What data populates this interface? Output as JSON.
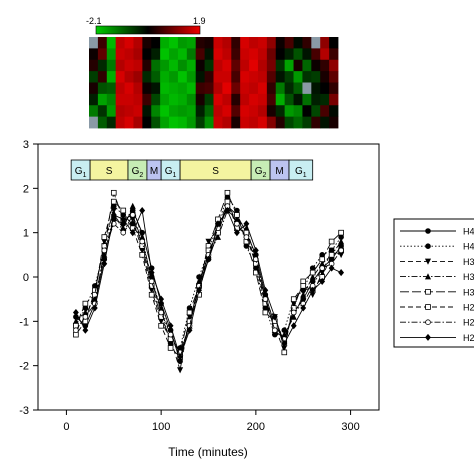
{
  "colorbar": {
    "min_label": "-2.1",
    "max_label": "1.9",
    "colors": [
      "#00cc00",
      "#000000",
      "#ee0000"
    ]
  },
  "heatmap": {
    "rows": 8,
    "cols": 28,
    "values": [
      [
        -0.2,
        0.5,
        -1.8,
        1.6,
        1.8,
        1.5,
        0.2,
        0.0,
        -1.7,
        -1.9,
        -1.5,
        -1.6,
        0.3,
        0.2,
        1.7,
        1.5,
        0.4,
        1.8,
        1.6,
        1.7,
        1.2,
        0.1,
        0.6,
        -0.1,
        0.4,
        0.3,
        1.2,
        0.0
      ],
      [
        0.1,
        0.8,
        -1.5,
        1.7,
        1.6,
        1.4,
        0.0,
        -0.3,
        -1.9,
        -1.6,
        -1.8,
        -1.2,
        0.6,
        -0.2,
        1.8,
        1.6,
        0.5,
        1.7,
        1.8,
        1.6,
        0.9,
        0.0,
        -0.3,
        -0.8,
        -0.2,
        0.6,
        1.5,
        0.5
      ],
      [
        0.3,
        -0.4,
        -1.2,
        1.5,
        1.7,
        1.6,
        0.3,
        -1.1,
        -1.5,
        -1.8,
        -1.4,
        -1.7,
        0.1,
        -0.5,
        1.6,
        1.8,
        0.8,
        1.6,
        1.9,
        1.5,
        1.0,
        -0.5,
        -1.6,
        0.2,
        -1.0,
        0.1,
        0.4,
        1.2
      ],
      [
        -0.6,
        0.4,
        -1.7,
        1.8,
        1.5,
        1.3,
        -0.4,
        -0.9,
        -1.7,
        -1.5,
        -1.9,
        -1.5,
        -0.2,
        0.4,
        1.7,
        1.7,
        0.6,
        1.8,
        1.7,
        1.6,
        0.7,
        -0.2,
        -0.6,
        -1.5,
        -0.5,
        -0.6,
        0.2,
        0.8
      ],
      [
        0.2,
        -0.8,
        -0.9,
        1.6,
        1.8,
        1.5,
        0.1,
        -0.2,
        -1.8,
        -1.7,
        -1.6,
        -1.8,
        0.5,
        0.6,
        1.5,
        1.9,
        0.9,
        1.7,
        1.6,
        1.8,
        0.4,
        -1.2,
        -0.4,
        -0.9,
        0.3,
        -0.2,
        0.0,
        0.4
      ],
      [
        -0.3,
        -1.6,
        -1.3,
        1.7,
        1.7,
        1.6,
        0.5,
        -0.7,
        -1.6,
        -1.8,
        -1.7,
        -1.4,
        0.2,
        -0.6,
        1.8,
        1.6,
        0.3,
        1.6,
        1.8,
        1.7,
        0.6,
        -1.7,
        -0.8,
        -0.2,
        -1.1,
        -0.3,
        -0.4,
        1.0
      ],
      [
        -1.2,
        -0.5,
        -1.5,
        1.5,
        1.6,
        1.7,
        -0.2,
        -1.3,
        -1.9,
        -1.6,
        -1.5,
        -1.6,
        -0.3,
        -1.0,
        1.6,
        1.8,
        0.7,
        1.8,
        1.7,
        1.5,
        0.2,
        -0.4,
        -1.5,
        -1.3,
        0.0,
        -0.7,
        0.6,
        -0.1
      ],
      [
        0.6,
        -0.9,
        -0.4,
        1.6,
        1.8,
        1.4,
        0.0,
        -0.8,
        -1.6,
        -1.9,
        -1.8,
        -1.5,
        -0.6,
        -1.4,
        1.7,
        1.5,
        0.2,
        1.7,
        1.6,
        1.8,
        1.1,
        0.3,
        -0.7,
        -1.0,
        -0.6,
        0.4,
        -0.2,
        0.2
      ]
    ],
    "gray_cells": [
      [
        0,
        0
      ],
      [
        4,
        24
      ],
      [
        7,
        0
      ],
      [
        0,
        25
      ]
    ]
  },
  "phase_bar": [
    {
      "name": "G",
      "sub": "1",
      "t0": 5,
      "t1": 25,
      "color": "#c8eef2"
    },
    {
      "name": "S",
      "sub": "",
      "t0": 25,
      "t1": 65,
      "color": "#f4f4a0"
    },
    {
      "name": "G",
      "sub": "2",
      "t0": 65,
      "t1": 85,
      "color": "#c7edb5"
    },
    {
      "name": "M",
      "sub": "",
      "t0": 85,
      "t1": 100,
      "color": "#bcc4f0"
    },
    {
      "name": "G",
      "sub": "1",
      "t0": 100,
      "t1": 120,
      "color": "#c8eef2"
    },
    {
      "name": "S",
      "sub": "",
      "t0": 120,
      "t1": 195,
      "color": "#f4f4a0"
    },
    {
      "name": "G",
      "sub": "2",
      "t0": 195,
      "t1": 215,
      "color": "#c7edb5"
    },
    {
      "name": "M",
      "sub": "",
      "t0": 215,
      "t1": 235,
      "color": "#bcc4f0"
    },
    {
      "name": "G",
      "sub": "1",
      "t0": 235,
      "t1": 260,
      "color": "#c8eef2"
    }
  ],
  "chart_data": {
    "type": "line",
    "xlabel": "Time (minutes)",
    "ylabel": "",
    "xlim": [
      -30,
      330
    ],
    "ylim": [
      -3,
      3
    ],
    "xticks": [
      0,
      100,
      200,
      300
    ],
    "yticks": [
      -3,
      -2,
      -1,
      0,
      1,
      2,
      3
    ],
    "grid": false,
    "legend_position": "right",
    "x": [
      10,
      20,
      30,
      40,
      50,
      60,
      70,
      80,
      90,
      100,
      110,
      120,
      130,
      140,
      150,
      160,
      170,
      180,
      190,
      200,
      210,
      220,
      230,
      240,
      250,
      260,
      270,
      280,
      290
    ],
    "series": [
      {
        "name": "H4",
        "style": "solid",
        "marker": "circle-filled",
        "values": [
          -0.9,
          -1.1,
          -0.6,
          0.4,
          1.3,
          1.2,
          1.5,
          1.0,
          0.2,
          -0.6,
          -1.2,
          -1.9,
          -1.0,
          -0.2,
          0.4,
          1.0,
          1.6,
          1.4,
          1.0,
          0.5,
          -0.4,
          -1.1,
          -1.4,
          -0.8,
          -0.5,
          -0.1,
          0.2,
          0.4,
          0.7
        ]
      },
      {
        "name": "H4",
        "style": "dotted",
        "marker": "circle-filled",
        "values": [
          -1.1,
          -0.7,
          -0.2,
          0.6,
          1.6,
          1.4,
          1.2,
          0.8,
          0.0,
          -0.8,
          -1.5,
          -1.6,
          -0.7,
          0.0,
          0.6,
          1.2,
          1.8,
          1.5,
          0.7,
          0.2,
          -0.7,
          -1.3,
          -1.2,
          -0.5,
          -0.3,
          0.2,
          0.5,
          0.6,
          0.9
        ]
      },
      {
        "name": "H3",
        "style": "dash",
        "marker": "triangle-down",
        "values": [
          -1.2,
          -0.9,
          -0.4,
          0.8,
          1.5,
          1.0,
          1.3,
          0.6,
          -0.3,
          -1.0,
          -1.4,
          -2.1,
          -0.9,
          -0.3,
          0.8,
          1.1,
          1.7,
          1.2,
          0.9,
          0.3,
          -0.6,
          -0.9,
          -1.6,
          -0.6,
          -0.2,
          -0.4,
          0.1,
          0.6,
          0.5
        ]
      },
      {
        "name": "H3",
        "style": "dashdot",
        "marker": "triangle-up",
        "values": [
          -1.0,
          -0.8,
          -0.5,
          0.5,
          1.4,
          1.1,
          1.6,
          0.9,
          -0.1,
          -0.7,
          -1.3,
          -1.8,
          -1.1,
          -0.1,
          0.5,
          0.9,
          1.5,
          1.3,
          1.1,
          0.4,
          -0.5,
          -1.2,
          -1.3,
          -0.9,
          -0.4,
          0.0,
          0.3,
          0.5,
          0.8
        ]
      },
      {
        "name": "H3",
        "style": "longdash",
        "marker": "square-open",
        "values": [
          -1.3,
          -1.0,
          -0.3,
          0.7,
          1.9,
          1.3,
          1.4,
          0.7,
          -0.2,
          -0.9,
          -1.4,
          -1.7,
          -0.8,
          -0.2,
          0.7,
          1.3,
          1.9,
          1.4,
          0.8,
          0.1,
          -0.8,
          -1.0,
          -1.5,
          -0.7,
          -0.1,
          0.1,
          0.4,
          0.8,
          1.0
        ]
      },
      {
        "name": "H2",
        "style": "dash",
        "marker": "square-open",
        "values": [
          -1.1,
          -0.6,
          -0.4,
          0.9,
          1.7,
          1.5,
          1.1,
          0.5,
          -0.4,
          -1.1,
          -1.6,
          -1.8,
          -1.0,
          -0.4,
          0.6,
          1.0,
          1.7,
          1.1,
          1.0,
          0.3,
          -0.6,
          -1.1,
          -1.7,
          -0.5,
          -0.2,
          -0.3,
          0.0,
          0.5,
          0.6
        ]
      },
      {
        "name": "H2",
        "style": "dashdot",
        "marker": "circle-open",
        "values": [
          -1.2,
          -0.9,
          -0.6,
          0.6,
          1.2,
          1.0,
          1.4,
          0.8,
          -0.1,
          -0.8,
          -1.3,
          -1.7,
          -1.1,
          -0.2,
          0.5,
          1.1,
          1.6,
          1.2,
          0.9,
          0.4,
          -0.5,
          -1.2,
          -1.4,
          -0.8,
          -0.6,
          -0.2,
          0.2,
          0.3,
          0.6
        ]
      },
      {
        "name": "H2",
        "style": "solid",
        "marker": "diamond-filled",
        "values": [
          -0.8,
          -1.2,
          -0.7,
          0.3,
          1.4,
          1.3,
          1.0,
          1.5,
          0.1,
          -0.5,
          -1.1,
          -1.8,
          -1.2,
          -0.3,
          0.4,
          1.2,
          1.5,
          1.0,
          1.2,
          0.6,
          -0.3,
          -0.9,
          -1.5,
          -1.1,
          -0.7,
          -0.3,
          -0.1,
          0.2,
          0.1
        ]
      }
    ]
  }
}
